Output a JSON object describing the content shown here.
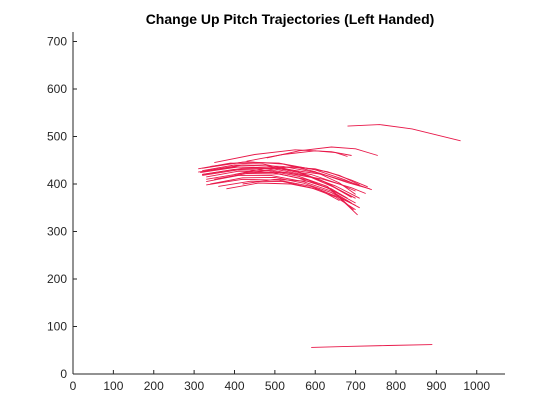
{
  "chart_data": {
    "type": "line",
    "title": "Change Up Pitch Trajectories (Left Handed)",
    "xlabel": "",
    "ylabel": "",
    "xlim": [
      0,
      1070
    ],
    "ylim": [
      0,
      720
    ],
    "xticks": [
      0,
      100,
      200,
      300,
      400,
      500,
      600,
      700,
      800,
      900,
      1000
    ],
    "yticks": [
      0,
      100,
      200,
      300,
      400,
      500,
      600,
      700
    ],
    "grid": false,
    "color": "#e8194a",
    "series": [
      {
        "x": [
          680,
          760,
          840,
          960
        ],
        "y": [
          522,
          525,
          516,
          491
        ]
      },
      {
        "x": [
          590,
          680,
          780,
          890
        ],
        "y": [
          56,
          58,
          60,
          62
        ]
      },
      {
        "x": [
          350,
          450,
          550,
          640,
          690
        ],
        "y": [
          445,
          462,
          472,
          468,
          460
        ]
      },
      {
        "x": [
          480,
          560,
          640,
          700,
          755
        ],
        "y": [
          455,
          470,
          478,
          474,
          460
        ]
      },
      {
        "x": [
          430,
          520,
          600,
          650,
          680
        ],
        "y": [
          448,
          462,
          470,
          466,
          458
        ]
      },
      {
        "x": [
          320,
          420,
          520,
          620,
          700,
          740
        ],
        "y": [
          420,
          433,
          432,
          420,
          400,
          388
        ]
      },
      {
        "x": [
          330,
          420,
          520,
          610,
          680,
          735
        ],
        "y": [
          428,
          440,
          437,
          423,
          403,
          390
        ]
      },
      {
        "x": [
          330,
          430,
          530,
          620,
          690,
          725
        ],
        "y": [
          410,
          424,
          424,
          410,
          392,
          380
        ]
      },
      {
        "x": [
          320,
          420,
          510,
          600,
          670,
          710
        ],
        "y": [
          433,
          446,
          444,
          430,
          410,
          396
        ]
      },
      {
        "x": [
          315,
          410,
          500,
          590,
          660,
          700
        ],
        "y": [
          424,
          436,
          434,
          420,
          400,
          385
        ]
      },
      {
        "x": [
          340,
          430,
          520,
          600,
          660,
          700
        ],
        "y": [
          437,
          447,
          442,
          426,
          402,
          378
        ]
      },
      {
        "x": [
          320,
          410,
          500,
          590,
          650,
          700
        ],
        "y": [
          418,
          430,
          428,
          414,
          392,
          370
        ]
      },
      {
        "x": [
          330,
          410,
          490,
          570,
          640,
          690
        ],
        "y": [
          405,
          418,
          418,
          405,
          385,
          360
        ]
      },
      {
        "x": [
          320,
          400,
          480,
          560,
          630,
          690
        ],
        "y": [
          428,
          440,
          438,
          424,
          402,
          372
        ]
      },
      {
        "x": [
          340,
          420,
          500,
          570,
          640,
          710
        ],
        "y": [
          400,
          413,
          414,
          402,
          382,
          350
        ]
      },
      {
        "x": [
          310,
          400,
          490,
          580,
          650,
          710
        ],
        "y": [
          425,
          436,
          433,
          418,
          396,
          370
        ]
      },
      {
        "x": [
          330,
          410,
          490,
          560,
          630,
          700
        ],
        "y": [
          415,
          427,
          425,
          412,
          392,
          360
        ]
      },
      {
        "x": [
          310,
          390,
          470,
          550,
          620,
          690
        ],
        "y": [
          432,
          444,
          442,
          428,
          406,
          372
        ]
      },
      {
        "x": [
          320,
          400,
          480,
          560,
          630,
          705
        ],
        "y": [
          420,
          431,
          429,
          416,
          395,
          335
        ]
      },
      {
        "x": [
          350,
          430,
          510,
          580,
          640,
          695
        ],
        "y": [
          410,
          422,
          421,
          409,
          388,
          345
        ]
      },
      {
        "x": [
          360,
          440,
          520,
          590,
          650,
          700
        ],
        "y": [
          395,
          406,
          405,
          392,
          373,
          346
        ]
      },
      {
        "x": [
          330,
          420,
          510,
          590,
          650,
          700
        ],
        "y": [
          398,
          410,
          408,
          395,
          375,
          355
        ]
      },
      {
        "x": [
          420,
          500,
          580,
          640,
          680
        ],
        "y": [
          400,
          410,
          406,
          390,
          370
        ]
      },
      {
        "x": [
          380,
          460,
          540,
          610,
          660
        ],
        "y": [
          390,
          402,
          400,
          388,
          365
        ]
      },
      {
        "x": [
          400,
          480,
          560,
          630,
          690,
          730
        ],
        "y": [
          420,
          434,
          436,
          426,
          408,
          394
        ]
      },
      {
        "x": [
          450,
          530,
          600,
          660,
          710
        ],
        "y": [
          425,
          436,
          432,
          418,
          398
        ]
      }
    ]
  }
}
